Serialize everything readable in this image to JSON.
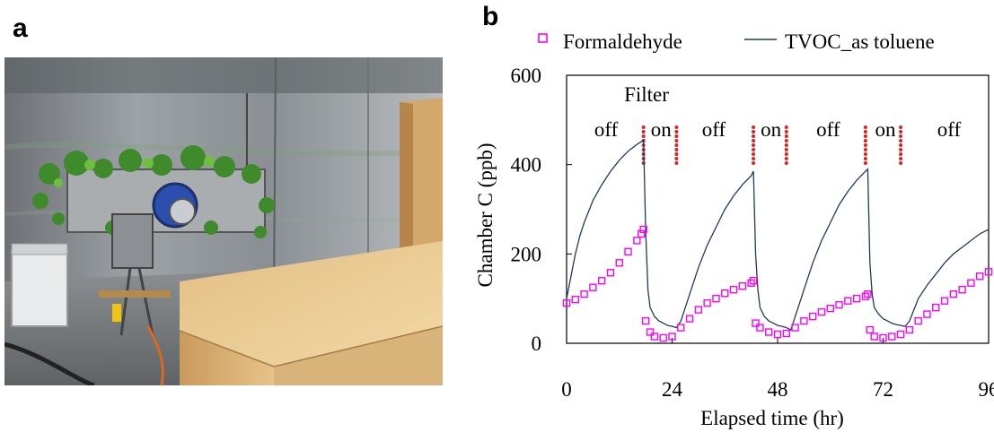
{
  "panels": {
    "a": "a",
    "b": "b"
  },
  "photo": {
    "icon": "chamber-photo-with-plants-and-filter"
  },
  "chart_data": {
    "type": "line",
    "xlabel": "Elapsed time (hr)",
    "ylabel": "Chamber C (ppb)",
    "xlim": [
      0,
      96
    ],
    "ylim": [
      0,
      600
    ],
    "x_ticks": [
      "0",
      "24",
      "48",
      "72",
      "96"
    ],
    "y_ticks": [
      "0",
      "200",
      "400",
      "600"
    ],
    "legend": {
      "position": "top",
      "entries": [
        "Formaldehyde",
        "TVOC_as toluene"
      ]
    },
    "annotations": {
      "filter_title": "Filter",
      "phases": [
        {
          "label": "off",
          "x": 9
        },
        {
          "label": "on",
          "x": 21.5
        },
        {
          "label": "off",
          "x": 33.5
        },
        {
          "label": "on",
          "x": 46.5
        },
        {
          "label": "off",
          "x": 59.5
        },
        {
          "label": "on",
          "x": 72.5
        },
        {
          "label": "off",
          "x": 87
        }
      ],
      "filter_switch_times": [
        17.5,
        25,
        42.5,
        50,
        68,
        76
      ]
    },
    "series": [
      {
        "name": "Formaldehyde",
        "marker": "square-open",
        "color": "#ff00ff",
        "x": [
          0,
          2,
          4,
          6,
          8,
          10,
          12,
          14,
          16,
          17,
          17.5,
          18,
          19,
          20,
          22,
          24,
          26,
          28,
          30,
          32,
          34,
          36,
          38,
          40,
          42,
          42.5,
          43,
          44,
          46,
          48,
          50,
          52,
          54,
          56,
          58,
          60,
          62,
          64,
          66,
          68,
          68.5,
          69,
          70,
          72,
          74,
          76,
          78,
          80,
          82,
          84,
          86,
          88,
          90,
          92,
          94,
          96
        ],
        "y": [
          90,
          98,
          110,
          125,
          140,
          158,
          180,
          205,
          230,
          245,
          255,
          50,
          25,
          15,
          12,
          15,
          35,
          55,
          75,
          90,
          100,
          112,
          120,
          128,
          135,
          140,
          45,
          35,
          25,
          20,
          22,
          35,
          50,
          60,
          70,
          78,
          86,
          95,
          100,
          105,
          110,
          30,
          15,
          12,
          15,
          20,
          30,
          50,
          65,
          80,
          95,
          110,
          120,
          135,
          150,
          160
        ]
      },
      {
        "name": "TVOC_as toluene",
        "color": "#1f3a5f",
        "x": [
          0,
          1,
          2,
          3,
          4,
          5,
          6,
          8,
          10,
          12,
          14,
          16,
          17.5,
          18,
          18.5,
          19,
          20,
          21,
          22,
          23,
          24,
          25,
          26,
          28,
          30,
          32,
          34,
          36,
          38,
          40,
          42,
          42.5,
          43,
          43.5,
          44,
          45,
          46,
          47,
          48,
          49,
          50,
          51,
          52,
          54,
          56,
          58,
          60,
          62,
          64,
          66,
          68,
          68.5,
          69,
          69.5,
          70,
          71,
          72,
          73,
          74,
          75,
          76,
          77,
          78,
          80,
          82,
          84,
          86,
          88,
          90,
          92,
          94,
          96
        ],
        "y": [
          100,
          150,
          200,
          240,
          270,
          295,
          320,
          355,
          385,
          410,
          430,
          445,
          455,
          250,
          120,
          80,
          60,
          50,
          45,
          40,
          38,
          35,
          50,
          110,
          170,
          220,
          260,
          300,
          330,
          355,
          375,
          385,
          200,
          120,
          80,
          60,
          50,
          45,
          40,
          38,
          35,
          30,
          60,
          120,
          180,
          230,
          270,
          310,
          340,
          365,
          385,
          390,
          180,
          110,
          80,
          65,
          55,
          50,
          45,
          42,
          40,
          38,
          50,
          100,
          130,
          155,
          180,
          200,
          215,
          230,
          245,
          255
        ]
      }
    ]
  }
}
